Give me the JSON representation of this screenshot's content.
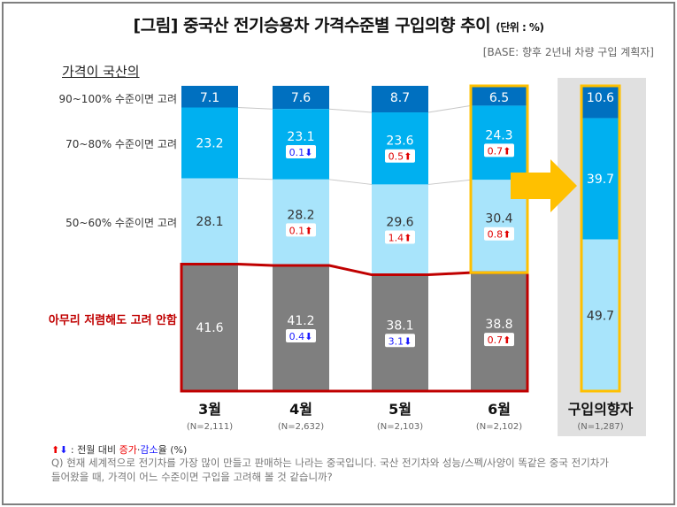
{
  "title": "[그림] 중국산 전기승용차 가격수준별 구입의향 추이",
  "unit": "(단위 : %)",
  "base": "[BASE: 향후 2년내 차량 구입 계획자]",
  "subhead": "가격이 국산의",
  "row_labels": [
    "90~100% 수준이면 고려",
    "70~80% 수준이면 고려",
    "50~60% 수준이면 고려",
    "아무리 저렴해도 고려 안함"
  ],
  "legend": {
    "arrows": "⬆⬇",
    "text1": " : 전월 대비 ",
    "increase": "증가",
    "dot": "·",
    "decrease": "감소",
    "text2": "율 (%)"
  },
  "question": "Q) 현재 세계적으로 전기차를 가장 많이 만들고 판매하는 나라는 중국입니다. 국산 전기차와 성능/스펙/사양이 똑같은 중국 전기차가 들어왔을 때, 가격이 어느 수준이면 구입을 고려해 볼 것 같습니까?",
  "colors": {
    "seg90": "#0070c0",
    "seg70": "#00b0f0",
    "seg50": "#a8e4fb",
    "never": "#7f7f7f",
    "highlight": "#ffc000",
    "outline": "#c00000",
    "increase": "#e00000",
    "decrease": "#1a1aff",
    "panel": "#e0e0e0"
  },
  "chart_data": {
    "type": "bar",
    "stacked": true,
    "ylim": [
      0,
      100
    ],
    "categories": [
      "3월",
      "4월",
      "5월",
      "6월",
      "구입의향자"
    ],
    "n_labels": [
      "(N=2,111)",
      "(N=2,632)",
      "(N=2,103)",
      "(N=2,102)",
      "(N=1,287)"
    ],
    "series": [
      {
        "key": "seg90",
        "values": [
          7.1,
          7.6,
          8.7,
          6.5,
          10.6
        ],
        "changes": [
          null,
          null,
          null,
          null,
          null
        ]
      },
      {
        "key": "seg70",
        "values": [
          23.2,
          23.1,
          23.6,
          24.3,
          39.7
        ],
        "changes": [
          null,
          {
            "v": "0.1",
            "dir": "down"
          },
          {
            "v": "0.5",
            "dir": "up"
          },
          {
            "v": "0.7",
            "dir": "up"
          },
          null
        ]
      },
      {
        "key": "seg50",
        "values": [
          28.1,
          28.2,
          29.6,
          30.4,
          49.7
        ],
        "changes": [
          null,
          {
            "v": "0.1",
            "dir": "up"
          },
          {
            "v": "1.4",
            "dir": "up"
          },
          {
            "v": "0.8",
            "dir": "up"
          },
          null
        ]
      },
      {
        "key": "never",
        "values": [
          41.6,
          41.2,
          38.1,
          38.8,
          null
        ],
        "changes": [
          null,
          {
            "v": "0.4",
            "dir": "down"
          },
          {
            "v": "3.1",
            "dir": "down"
          },
          {
            "v": "0.7",
            "dir": "up"
          },
          null
        ]
      }
    ]
  }
}
